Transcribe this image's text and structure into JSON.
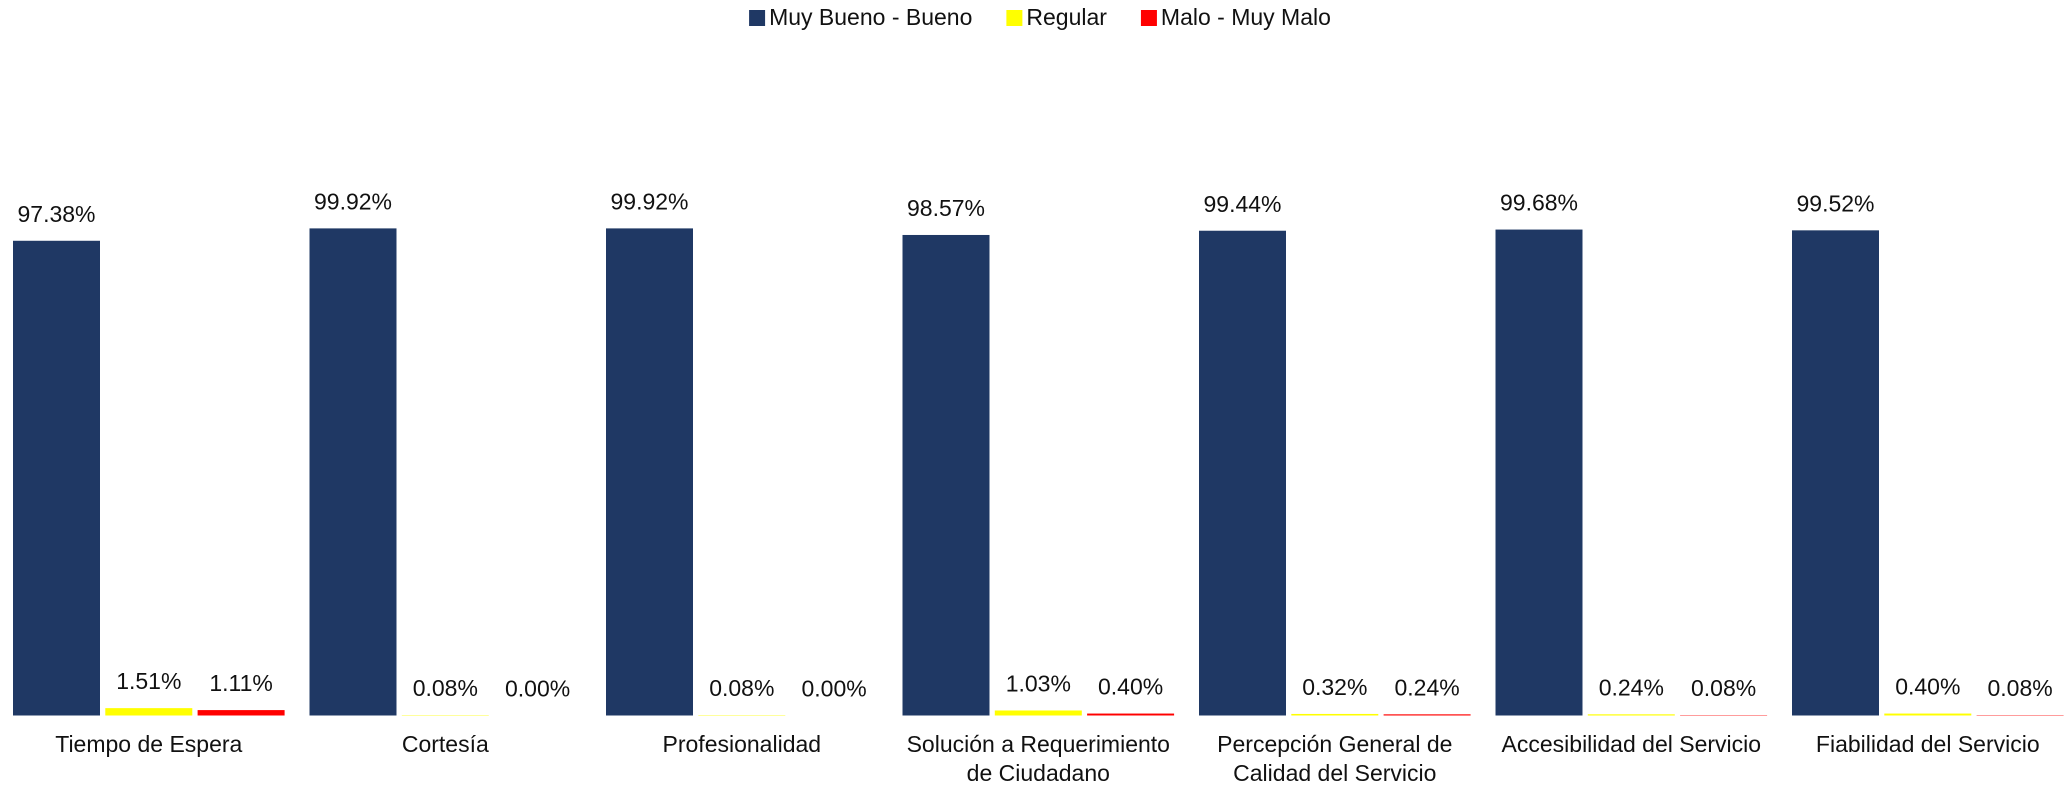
{
  "chart_data": {
    "type": "bar",
    "categories": [
      "Tiempo de Espera",
      "Cortesía",
      "Profesionalidad",
      "Solución a Requerimiento de Ciudadano",
      "Percepción General de Calidad del Servicio",
      "Accesibilidad del Servicio",
      "Fiabilidad del Servicio"
    ],
    "series": [
      {
        "name": "Muy Bueno - Bueno",
        "color": "#1f3864",
        "values": [
          97.38,
          99.92,
          99.92,
          98.57,
          99.44,
          99.68,
          99.52
        ],
        "value_labels": [
          "97.38%",
          "99.92%",
          "99.92%",
          "98.57%",
          "99.44%",
          "99.68%",
          "99.52%"
        ]
      },
      {
        "name": "Regular",
        "color": "#ffff00",
        "values": [
          1.51,
          0.08,
          0.08,
          1.03,
          0.32,
          0.24,
          0.4
        ],
        "value_labels": [
          "1.51%",
          "0.08%",
          "0.08%",
          "1.03%",
          "0.32%",
          "0.24%",
          "0.40%"
        ]
      },
      {
        "name": "Malo - Muy Malo",
        "color": "#ff0000",
        "values": [
          1.11,
          0.0,
          0.0,
          0.4,
          0.24,
          0.08,
          0.08
        ],
        "value_labels": [
          "1.11%",
          "0.00%",
          "0.00%",
          "0.40%",
          "0.24%",
          "0.08%",
          "0.08%"
        ]
      }
    ],
    "ylim": [
      0,
      100
    ],
    "legend": "top"
  }
}
